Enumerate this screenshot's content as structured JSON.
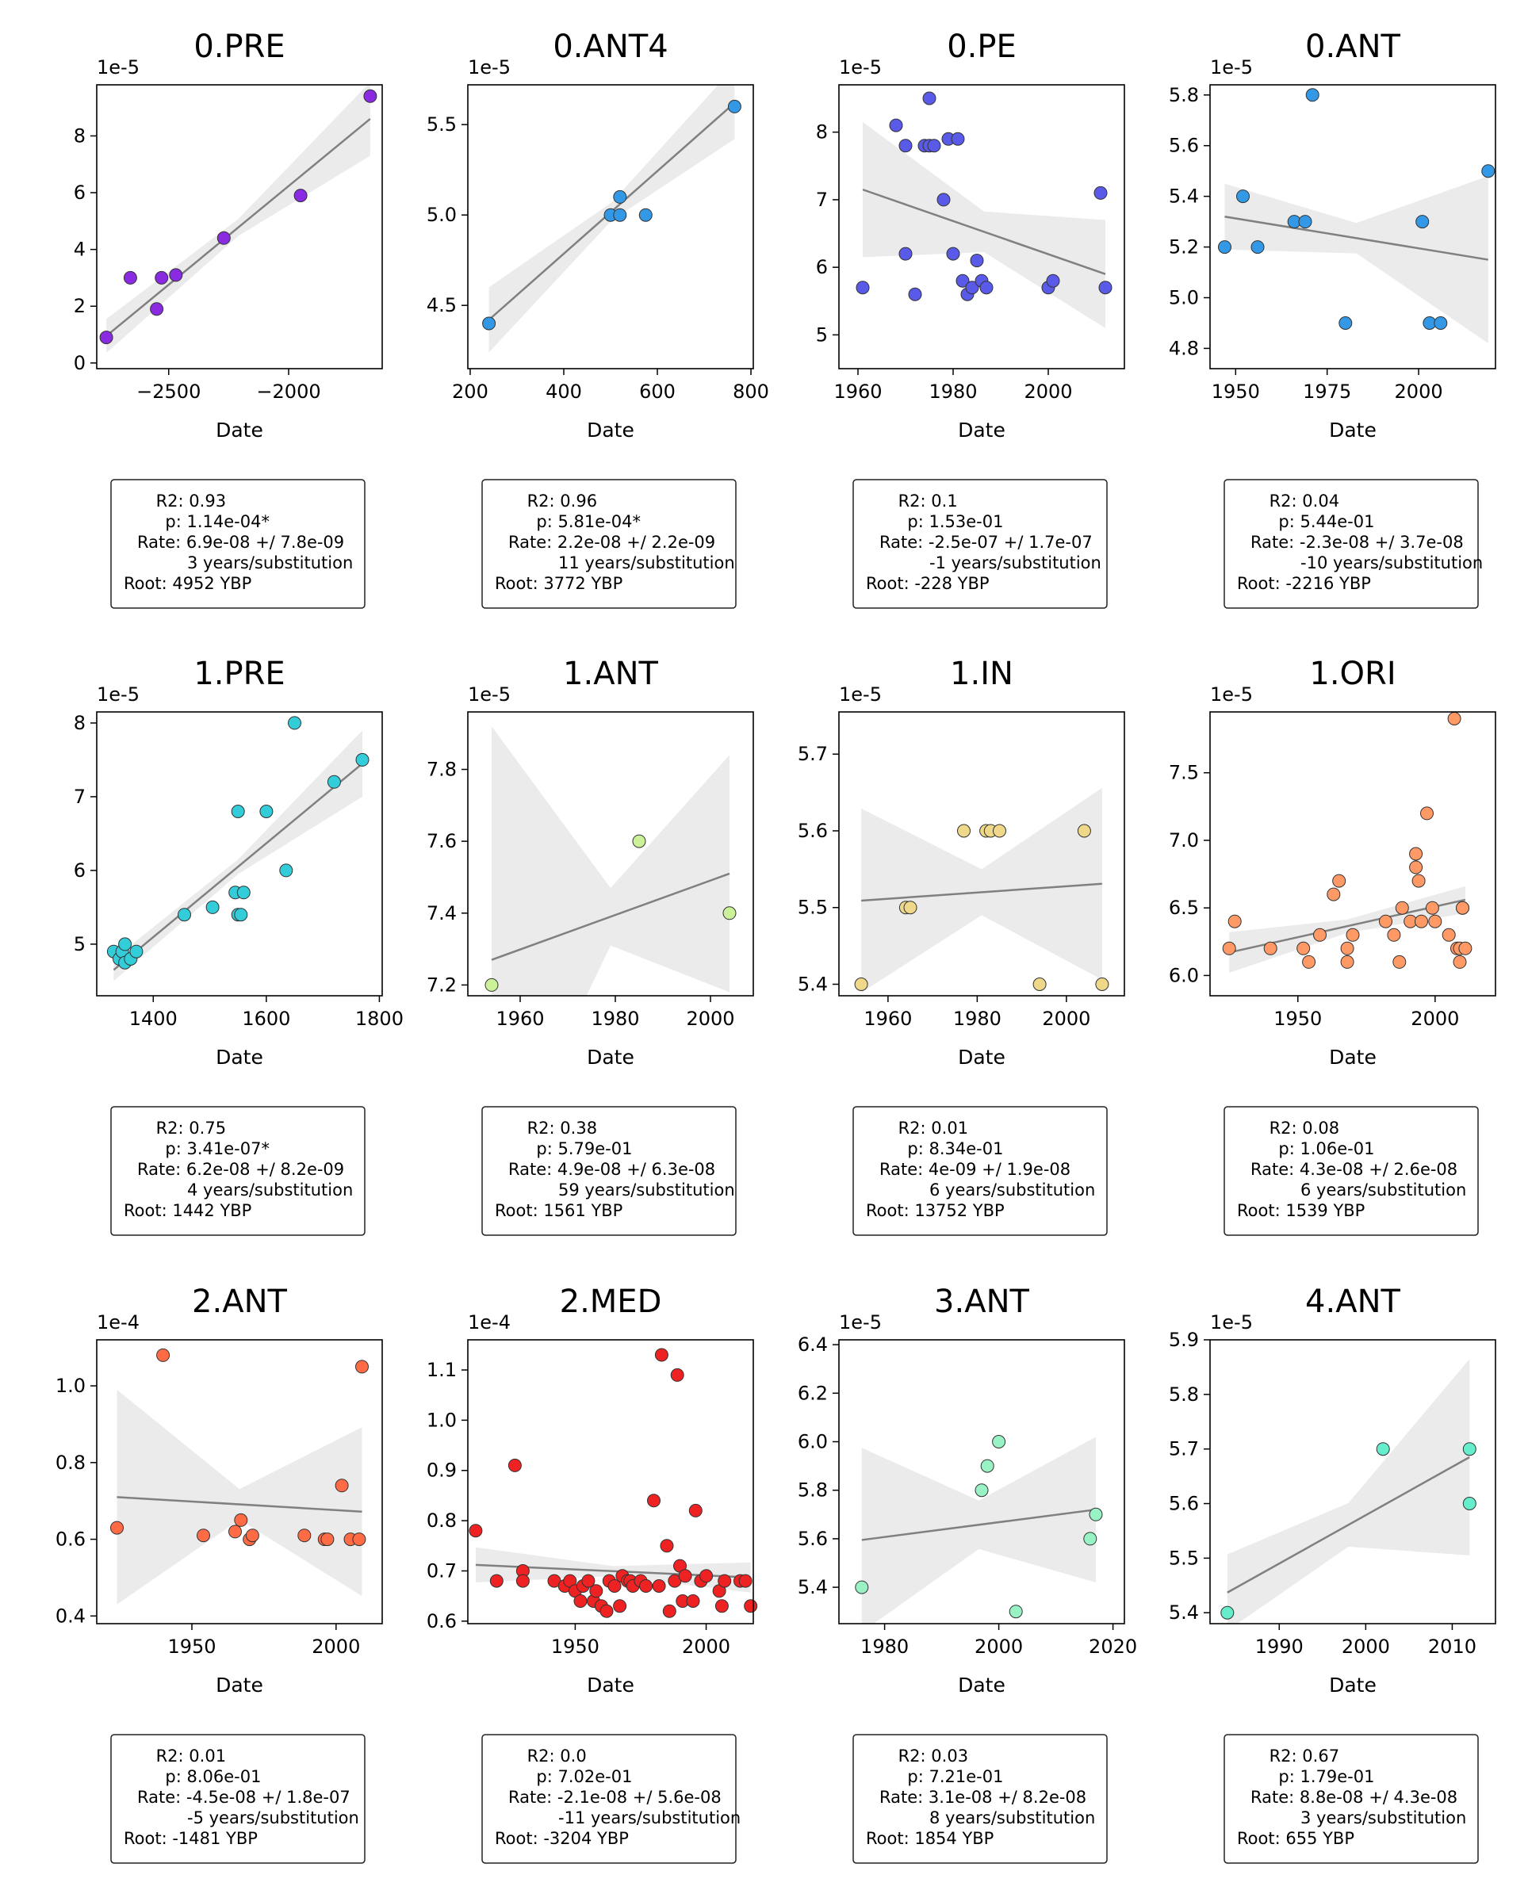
{
  "chart_data": [
    {
      "type": "scatter",
      "title": "0.PRE",
      "xlabel": "Date",
      "offset_label": "1e-5",
      "color": "#8a2be2",
      "xlim": [
        -2800,
        -1610
      ],
      "ylim": [
        -0.2,
        9.8
      ],
      "xticks": [
        -2500,
        -2000
      ],
      "xtick_labels": [
        "−2500",
        "−2000"
      ],
      "yticks": [
        0,
        2,
        4,
        6,
        8
      ],
      "ytick_labels": [
        "0",
        "2",
        "4",
        "6",
        "8"
      ],
      "x": [
        -2760,
        -2660,
        -2550,
        -2530,
        -2470,
        -2270,
        -1950,
        -1660
      ],
      "y": [
        0.9,
        3.0,
        1.9,
        3.0,
        3.1,
        4.4,
        5.9,
        9.4
      ],
      "fit": {
        "x1": -2760,
        "y1": 0.95,
        "x2": -1660,
        "y2": 8.6
      },
      "band": {
        "half1": 0.6,
        "halfmin": 0.3,
        "half2": 1.3
      },
      "stats": [
        "R2: 0.93",
        "p: 1.14e-04*",
        "Rate: 6.9e-08 +/ 7.8e-09",
        "3 years/substitution",
        "Root: 4952 YBP"
      ]
    },
    {
      "type": "scatter",
      "title": "0.ANT4",
      "xlabel": "Date",
      "offset_label": "1e-5",
      "color": "#3399e6",
      "xlim": [
        195,
        805
      ],
      "ylim": [
        4.15,
        5.72
      ],
      "xticks": [
        200,
        400,
        600,
        800
      ],
      "xtick_labels": [
        "200",
        "400",
        "600",
        "800"
      ],
      "yticks": [
        4.5,
        5.0,
        5.5
      ],
      "ytick_labels": [
        "4.5",
        "5.0",
        "5.5"
      ],
      "x": [
        240,
        500,
        520,
        520,
        575,
        765
      ],
      "y": [
        4.4,
        5.0,
        5.0,
        5.1,
        5.0,
        5.6
      ],
      "fit": {
        "x1": 240,
        "y1": 4.42,
        "x2": 765,
        "y2": 5.62
      },
      "band": {
        "half1": 0.18,
        "halfmin": 0.05,
        "half2": 0.2
      },
      "stats": [
        "R2: 0.96",
        "p: 5.81e-04*",
        "Rate: 2.2e-08 +/ 2.2e-09",
        "11 years/substitution",
        "Root: 3772 YBP"
      ]
    },
    {
      "type": "scatter",
      "title": "0.PE",
      "xlabel": "Date",
      "offset_label": "1e-5",
      "color": "#5a5ae8",
      "xlim": [
        1956,
        2016
      ],
      "ylim": [
        4.5,
        8.7
      ],
      "xticks": [
        1960,
        1980,
        2000
      ],
      "xtick_labels": [
        "1960",
        "1980",
        "2000"
      ],
      "yticks": [
        5,
        6,
        7,
        8
      ],
      "ytick_labels": [
        "5",
        "6",
        "7",
        "8"
      ],
      "x": [
        1961,
        1968,
        1970,
        1970,
        1972,
        1974,
        1975,
        1975,
        1976,
        1978,
        1979,
        1980,
        1981,
        1982,
        1983,
        1984,
        1985,
        1986,
        1987,
        2000,
        2001,
        2011,
        2012
      ],
      "y": [
        5.7,
        8.1,
        6.2,
        7.8,
        5.6,
        7.8,
        8.5,
        7.8,
        7.8,
        7.0,
        7.9,
        6.2,
        7.9,
        5.8,
        5.6,
        5.7,
        6.1,
        5.8,
        5.7,
        5.7,
        5.8,
        7.1,
        5.7
      ],
      "fit": {
        "x1": 1961,
        "y1": 7.15,
        "x2": 2012,
        "y2": 5.9
      },
      "band": {
        "half1": 1.0,
        "halfmin": 0.3,
        "half2": 0.8
      },
      "stats": [
        "R2: 0.1",
        "p: 1.53e-01",
        "Rate: -2.5e-07 +/ 1.7e-07",
        "-1 years/substitution",
        "Root: -228 YBP"
      ]
    },
    {
      "type": "scatter",
      "title": "0.ANT",
      "xlabel": "Date",
      "offset_label": "1e-5",
      "color": "#3399e6",
      "xlim": [
        1943,
        2021
      ],
      "ylim": [
        4.72,
        5.84
      ],
      "xticks": [
        1950,
        1975,
        2000
      ],
      "xtick_labels": [
        "1950",
        "1975",
        "2000"
      ],
      "yticks": [
        4.8,
        5.0,
        5.2,
        5.4,
        5.6,
        5.8
      ],
      "ytick_labels": [
        "4.8",
        "5.0",
        "5.2",
        "5.4",
        "5.6",
        "5.8"
      ],
      "x": [
        1947,
        1952,
        1956,
        1966,
        1969,
        1971,
        1980,
        2001,
        2003,
        2006,
        2019
      ],
      "y": [
        5.2,
        5.4,
        5.2,
        5.3,
        5.3,
        5.8,
        4.9,
        5.3,
        4.9,
        4.9,
        5.5
      ],
      "fit": {
        "x1": 1947,
        "y1": 5.32,
        "x2": 2019,
        "y2": 5.15
      },
      "band": {
        "half1": 0.13,
        "halfmin": 0.06,
        "half2": 0.33
      },
      "stats": [
        "R2: 0.04",
        "p: 5.44e-01",
        "Rate: -2.3e-08 +/ 3.7e-08",
        "-10 years/substitution",
        "Root: -2216 YBP"
      ]
    },
    {
      "type": "scatter",
      "title": "1.PRE",
      "xlabel": "Date",
      "offset_label": "1e-5",
      "color": "#33ccd9",
      "xlim": [
        1300,
        1805
      ],
      "ylim": [
        4.3,
        8.15
      ],
      "xticks": [
        1400,
        1600,
        1800
      ],
      "xtick_labels": [
        "1400",
        "1600",
        "1800"
      ],
      "yticks": [
        5,
        6,
        7,
        8
      ],
      "ytick_labels": [
        "5",
        "6",
        "7",
        "8"
      ],
      "x": [
        1330,
        1340,
        1345,
        1350,
        1350,
        1360,
        1370,
        1455,
        1505,
        1545,
        1550,
        1550,
        1555,
        1560,
        1600,
        1635,
        1650,
        1720,
        1770
      ],
      "y": [
        4.9,
        4.8,
        4.9,
        5.0,
        4.75,
        4.8,
        4.9,
        5.4,
        5.5,
        5.7,
        6.8,
        5.4,
        5.4,
        5.7,
        6.8,
        6.0,
        8.0,
        7.2,
        7.5
      ],
      "fit": {
        "x1": 1330,
        "y1": 4.65,
        "x2": 1770,
        "y2": 7.45
      },
      "band": {
        "half1": 0.15,
        "halfmin": 0.1,
        "half2": 0.45
      },
      "stats": [
        "R2: 0.75",
        "p: 3.41e-07*",
        "Rate: 6.2e-08 +/ 8.2e-09",
        "4 years/substitution",
        "Root: 1442 YBP"
      ]
    },
    {
      "type": "scatter",
      "title": "1.ANT",
      "xlabel": "Date",
      "offset_label": "1e-5",
      "color": "#ccf299",
      "xlim": [
        1949,
        2009
      ],
      "ylim": [
        7.17,
        7.96
      ],
      "xticks": [
        1960,
        1980,
        2000
      ],
      "xtick_labels": [
        "1960",
        "1980",
        "2000"
      ],
      "yticks": [
        7.2,
        7.4,
        7.6,
        7.8
      ],
      "ytick_labels": [
        "7.2",
        "7.4",
        "7.6",
        "7.8"
      ],
      "x": [
        1954,
        1985,
        2004
      ],
      "y": [
        7.2,
        7.6,
        7.4
      ],
      "fit": {
        "x1": 1954,
        "y1": 7.27,
        "x2": 2004,
        "y2": 7.51
      },
      "band": {
        "half1": 0.65,
        "halfmin": 0.08,
        "half2": 0.33
      },
      "stats": [
        "R2: 0.38",
        "p: 5.79e-01",
        "Rate: 4.9e-08 +/ 6.3e-08",
        "59 years/substitution",
        "Root: 1561 YBP"
      ]
    },
    {
      "type": "scatter",
      "title": "1.IN",
      "xlabel": "Date",
      "offset_label": "1e-5",
      "color": "#f0d88a",
      "xlim": [
        1949,
        2013
      ],
      "ylim": [
        5.385,
        5.755
      ],
      "xticks": [
        1960,
        1980,
        2000
      ],
      "xtick_labels": [
        "1960",
        "1980",
        "2000"
      ],
      "yticks": [
        5.4,
        5.5,
        5.6,
        5.7
      ],
      "ytick_labels": [
        "5.4",
        "5.5",
        "5.6",
        "5.7"
      ],
      "x": [
        1954,
        1964,
        1965,
        1977,
        1982,
        1983,
        1985,
        1994,
        2004,
        2008
      ],
      "y": [
        5.4,
        5.5,
        5.5,
        5.6,
        5.6,
        5.6,
        5.6,
        5.4,
        5.6,
        5.4
      ],
      "fit": {
        "x1": 1954,
        "y1": 5.509,
        "x2": 2008,
        "y2": 5.531
      },
      "band": {
        "half1": 0.12,
        "halfmin": 0.03,
        "half2": 0.125
      },
      "stats": [
        "R2: 0.01",
        "p: 8.34e-01",
        "Rate: 4e-09 +/ 1.9e-08",
        "6 years/substitution",
        "Root: 13752 YBP"
      ]
    },
    {
      "type": "scatter",
      "title": "1.ORI",
      "xlabel": "Date",
      "offset_label": "1e-5",
      "color": "#ff9966",
      "xlim": [
        1918,
        2022
      ],
      "ylim": [
        5.85,
        7.95
      ],
      "xticks": [
        1950,
        2000
      ],
      "xtick_labels": [
        "1950",
        "2000"
      ],
      "yticks": [
        6.0,
        6.5,
        7.0,
        7.5
      ],
      "ytick_labels": [
        "6.0",
        "6.5",
        "7.0",
        "7.5"
      ],
      "x": [
        1925,
        1927,
        1940,
        1952,
        1954,
        1958,
        1963,
        1965,
        1968,
        1968,
        1970,
        1982,
        1985,
        1987,
        1988,
        1991,
        1993,
        1993,
        1994,
        1995,
        1997,
        1999,
        2000,
        2005,
        2007,
        2008,
        2009,
        2009,
        2010,
        2010,
        2011
      ],
      "y": [
        6.2,
        6.4,
        6.2,
        6.2,
        6.1,
        6.3,
        6.6,
        6.7,
        6.2,
        6.1,
        6.3,
        6.4,
        6.3,
        6.1,
        6.5,
        6.4,
        6.9,
        6.8,
        6.7,
        6.4,
        7.2,
        6.5,
        6.4,
        6.3,
        7.9,
        6.2,
        6.1,
        6.2,
        6.5,
        6.5,
        6.2
      ],
      "fit": {
        "x1": 1925,
        "y1": 6.17,
        "x2": 2011,
        "y2": 6.56
      },
      "band": {
        "half1": 0.15,
        "halfmin": 0.05,
        "half2": 0.1
      },
      "stats": [
        "R2: 0.08",
        "p: 1.06e-01",
        "Rate: 4.3e-08 +/ 2.6e-08",
        "6 years/substitution",
        "Root: 1539 YBP"
      ]
    },
    {
      "type": "scatter",
      "title": "2.ANT",
      "xlabel": "Date",
      "offset_label": "1e-4",
      "color": "#ff6b45",
      "xlim": [
        1917,
        2016
      ],
      "ylim": [
        0.38,
        1.12
      ],
      "xticks": [
        1950,
        2000
      ],
      "xtick_labels": [
        "1950",
        "2000"
      ],
      "yticks": [
        0.4,
        0.6,
        0.8,
        1.0
      ],
      "ytick_labels": [
        "0.4",
        "0.6",
        "0.8",
        "1.0"
      ],
      "x": [
        1924,
        1940,
        1954,
        1965,
        1967,
        1970,
        1971,
        1989,
        1996,
        1997,
        2002,
        2005,
        2008,
        2009
      ],
      "y": [
        0.63,
        1.08,
        0.61,
        0.62,
        0.65,
        0.6,
        0.61,
        0.61,
        0.6,
        0.6,
        0.74,
        0.6,
        0.6,
        1.05
      ],
      "fit": {
        "x1": 1924,
        "y1": 0.71,
        "x2": 2009,
        "y2": 0.672
      },
      "band": {
        "half1": 0.28,
        "halfmin": 0.04,
        "half2": 0.22
      },
      "stats": [
        "R2: 0.01",
        "p: 8.06e-01",
        "Rate: -4.5e-08 +/ 1.8e-07",
        "-5 years/substitution",
        "Root: -1481 YBP"
      ]
    },
    {
      "type": "scatter",
      "title": "2.MED",
      "xlabel": "Date",
      "offset_label": "1e-4",
      "color": "#ee2222",
      "xlim": [
        1909,
        2018
      ],
      "ylim": [
        0.595,
        1.16
      ],
      "xticks": [
        1950,
        2000
      ],
      "xtick_labels": [
        "1950",
        "2000"
      ],
      "yticks": [
        0.6,
        0.7,
        0.8,
        0.9,
        1.0,
        1.1
      ],
      "ytick_labels": [
        "0.6",
        "0.7",
        "0.8",
        "0.9",
        "1.0",
        "1.1"
      ],
      "x": [
        1912,
        1920,
        1927,
        1930,
        1930,
        1942,
        1946,
        1948,
        1950,
        1952,
        1953,
        1955,
        1957,
        1958,
        1960,
        1962,
        1963,
        1965,
        1967,
        1968,
        1970,
        1971,
        1972,
        1975,
        1977,
        1980,
        1982,
        1983,
        1985,
        1986,
        1988,
        1989,
        1990,
        1991,
        1992,
        1995,
        1996,
        1998,
        2000,
        2005,
        2006,
        2007,
        2013,
        2015,
        2017
      ],
      "y": [
        0.78,
        0.68,
        0.91,
        0.7,
        0.68,
        0.68,
        0.67,
        0.68,
        0.66,
        0.64,
        0.67,
        0.68,
        0.64,
        0.66,
        0.63,
        0.62,
        0.68,
        0.67,
        0.63,
        0.69,
        0.68,
        0.68,
        0.67,
        0.68,
        0.67,
        0.84,
        0.67,
        1.13,
        0.75,
        0.62,
        0.68,
        1.09,
        0.71,
        0.64,
        0.69,
        0.64,
        0.82,
        0.68,
        0.69,
        0.66,
        0.63,
        0.68,
        0.68,
        0.68,
        0.63
      ],
      "fit": {
        "x1": 1912,
        "y1": 0.712,
        "x2": 2017,
        "y2": 0.687
      },
      "band": {
        "half1": 0.035,
        "halfmin": 0.01,
        "half2": 0.03
      },
      "stats": [
        "R2: 0.0",
        "p: 7.02e-01",
        "Rate: -2.1e-08 +/ 5.6e-08",
        "-11 years/substitution",
        "Root: -3204 YBP"
      ]
    },
    {
      "type": "scatter",
      "title": "3.ANT",
      "xlabel": "Date",
      "offset_label": "1e-5",
      "color": "#99f2c4",
      "xlim": [
        1972,
        2022
      ],
      "ylim": [
        5.25,
        6.42
      ],
      "xticks": [
        1980,
        2000,
        2020
      ],
      "xtick_labels": [
        "1980",
        "2000",
        "2020"
      ],
      "yticks": [
        5.4,
        5.6,
        5.8,
        6.0,
        6.2,
        6.4
      ],
      "ytick_labels": [
        "5.4",
        "5.6",
        "5.8",
        "6.0",
        "6.2",
        "6.4"
      ],
      "x": [
        1976,
        1997,
        1998,
        2000,
        2003,
        2016,
        2017
      ],
      "y": [
        5.4,
        5.8,
        5.9,
        6.0,
        5.3,
        5.6,
        5.7
      ],
      "fit": {
        "x1": 1976,
        "y1": 5.595,
        "x2": 2017,
        "y2": 5.72
      },
      "band": {
        "half1": 0.38,
        "halfmin": 0.1,
        "half2": 0.3
      },
      "stats": [
        "R2: 0.03",
        "p: 7.21e-01",
        "Rate: 3.1e-08 +/ 8.2e-08",
        "8 years/substitution",
        "Root: 1854 YBP"
      ]
    },
    {
      "type": "scatter",
      "title": "4.ANT",
      "xlabel": "Date",
      "offset_label": "1e-5",
      "color": "#66eecc",
      "xlim": [
        1982,
        2015
      ],
      "ylim": [
        5.38,
        5.9
      ],
      "xticks": [
        1990,
        2000,
        2010
      ],
      "xtick_labels": [
        "1990",
        "2000",
        "2010"
      ],
      "yticks": [
        5.4,
        5.5,
        5.6,
        5.7,
        5.8,
        5.9
      ],
      "ytick_labels": [
        "5.4",
        "5.5",
        "5.6",
        "5.7",
        "5.8",
        "5.9"
      ],
      "x": [
        1984,
        2002,
        2012,
        2012
      ],
      "y": [
        5.4,
        5.7,
        5.7,
        5.6
      ],
      "fit": {
        "x1": 1984,
        "y1": 5.437,
        "x2": 2012,
        "y2": 5.685
      },
      "band": {
        "half1": 0.07,
        "halfmin": 0.04,
        "half2": 0.18
      },
      "stats": [
        "R2: 0.67",
        "p: 1.79e-01",
        "Rate: 8.8e-08 +/ 4.3e-08",
        "3 years/substitution",
        "Root: 655 YBP"
      ]
    }
  ]
}
